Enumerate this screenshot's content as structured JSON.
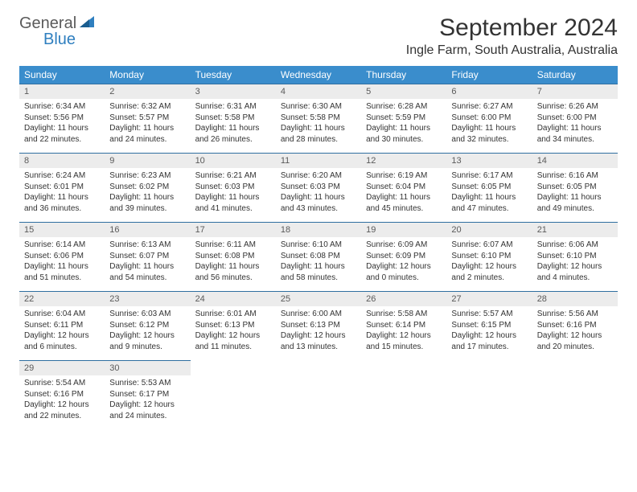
{
  "logo": {
    "text1": "General",
    "text2": "Blue"
  },
  "title": "September 2024",
  "location": "Ingle Farm, South Australia, Australia",
  "day_headers": [
    "Sunday",
    "Monday",
    "Tuesday",
    "Wednesday",
    "Thursday",
    "Friday",
    "Saturday"
  ],
  "colors": {
    "header_bg": "#3a8dcc",
    "header_text": "#ffffff",
    "daynum_bg": "#ececec",
    "daynum_text": "#5a5a5a",
    "daynum_border": "#2f6fa0",
    "body_text": "#333333",
    "logo_gray": "#5a5a5a",
    "logo_blue": "#2f7fbf"
  },
  "weeks": [
    [
      {
        "d": "1",
        "sr": "6:34 AM",
        "ss": "5:56 PM",
        "dl": "11 hours and 22 minutes."
      },
      {
        "d": "2",
        "sr": "6:32 AM",
        "ss": "5:57 PM",
        "dl": "11 hours and 24 minutes."
      },
      {
        "d": "3",
        "sr": "6:31 AM",
        "ss": "5:58 PM",
        "dl": "11 hours and 26 minutes."
      },
      {
        "d": "4",
        "sr": "6:30 AM",
        "ss": "5:58 PM",
        "dl": "11 hours and 28 minutes."
      },
      {
        "d": "5",
        "sr": "6:28 AM",
        "ss": "5:59 PM",
        "dl": "11 hours and 30 minutes."
      },
      {
        "d": "6",
        "sr": "6:27 AM",
        "ss": "6:00 PM",
        "dl": "11 hours and 32 minutes."
      },
      {
        "d": "7",
        "sr": "6:26 AM",
        "ss": "6:00 PM",
        "dl": "11 hours and 34 minutes."
      }
    ],
    [
      {
        "d": "8",
        "sr": "6:24 AM",
        "ss": "6:01 PM",
        "dl": "11 hours and 36 minutes."
      },
      {
        "d": "9",
        "sr": "6:23 AM",
        "ss": "6:02 PM",
        "dl": "11 hours and 39 minutes."
      },
      {
        "d": "10",
        "sr": "6:21 AM",
        "ss": "6:03 PM",
        "dl": "11 hours and 41 minutes."
      },
      {
        "d": "11",
        "sr": "6:20 AM",
        "ss": "6:03 PM",
        "dl": "11 hours and 43 minutes."
      },
      {
        "d": "12",
        "sr": "6:19 AM",
        "ss": "6:04 PM",
        "dl": "11 hours and 45 minutes."
      },
      {
        "d": "13",
        "sr": "6:17 AM",
        "ss": "6:05 PM",
        "dl": "11 hours and 47 minutes."
      },
      {
        "d": "14",
        "sr": "6:16 AM",
        "ss": "6:05 PM",
        "dl": "11 hours and 49 minutes."
      }
    ],
    [
      {
        "d": "15",
        "sr": "6:14 AM",
        "ss": "6:06 PM",
        "dl": "11 hours and 51 minutes."
      },
      {
        "d": "16",
        "sr": "6:13 AM",
        "ss": "6:07 PM",
        "dl": "11 hours and 54 minutes."
      },
      {
        "d": "17",
        "sr": "6:11 AM",
        "ss": "6:08 PM",
        "dl": "11 hours and 56 minutes."
      },
      {
        "d": "18",
        "sr": "6:10 AM",
        "ss": "6:08 PM",
        "dl": "11 hours and 58 minutes."
      },
      {
        "d": "19",
        "sr": "6:09 AM",
        "ss": "6:09 PM",
        "dl": "12 hours and 0 minutes."
      },
      {
        "d": "20",
        "sr": "6:07 AM",
        "ss": "6:10 PM",
        "dl": "12 hours and 2 minutes."
      },
      {
        "d": "21",
        "sr": "6:06 AM",
        "ss": "6:10 PM",
        "dl": "12 hours and 4 minutes."
      }
    ],
    [
      {
        "d": "22",
        "sr": "6:04 AM",
        "ss": "6:11 PM",
        "dl": "12 hours and 6 minutes."
      },
      {
        "d": "23",
        "sr": "6:03 AM",
        "ss": "6:12 PM",
        "dl": "12 hours and 9 minutes."
      },
      {
        "d": "24",
        "sr": "6:01 AM",
        "ss": "6:13 PM",
        "dl": "12 hours and 11 minutes."
      },
      {
        "d": "25",
        "sr": "6:00 AM",
        "ss": "6:13 PM",
        "dl": "12 hours and 13 minutes."
      },
      {
        "d": "26",
        "sr": "5:58 AM",
        "ss": "6:14 PM",
        "dl": "12 hours and 15 minutes."
      },
      {
        "d": "27",
        "sr": "5:57 AM",
        "ss": "6:15 PM",
        "dl": "12 hours and 17 minutes."
      },
      {
        "d": "28",
        "sr": "5:56 AM",
        "ss": "6:16 PM",
        "dl": "12 hours and 20 minutes."
      }
    ],
    [
      {
        "d": "29",
        "sr": "5:54 AM",
        "ss": "6:16 PM",
        "dl": "12 hours and 22 minutes."
      },
      {
        "d": "30",
        "sr": "5:53 AM",
        "ss": "6:17 PM",
        "dl": "12 hours and 24 minutes."
      },
      null,
      null,
      null,
      null,
      null
    ]
  ],
  "labels": {
    "sunrise": "Sunrise:",
    "sunset": "Sunset:",
    "daylight": "Daylight:"
  }
}
